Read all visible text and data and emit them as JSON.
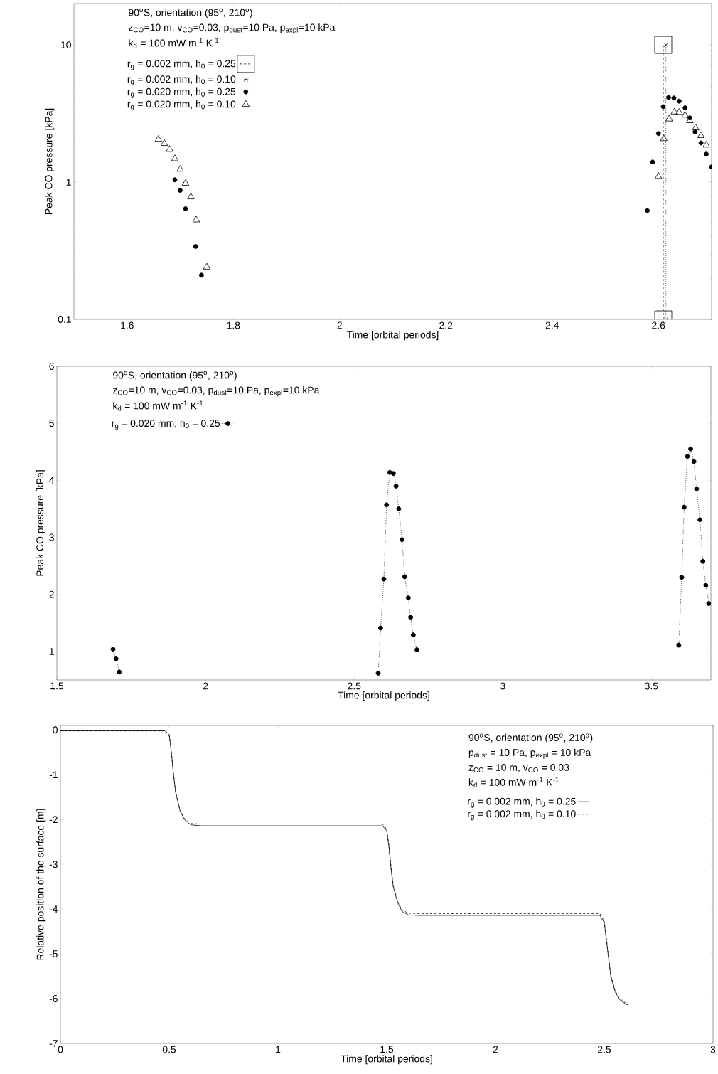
{
  "chart_data": [
    {
      "type": "scatter",
      "xlabel": "Time [orbital periods]",
      "ylabel": "Peak CO pressure [kPa]",
      "log": "y",
      "legend": "top left",
      "xlim": [
        1.5,
        2.7
      ],
      "ylim": [
        0.1,
        20
      ],
      "xticks": [
        1.6,
        1.8,
        2,
        2.2,
        2.4,
        2.6
      ],
      "yticks": [
        0.1,
        1,
        10
      ],
      "annotations": [
        "90$^{o}$S, orientation (95$^{o}$, 210$^{o}$)",
        "z$_{CO}$=10 m, v$_{CO}$=0.03, p$_{dust}$=10 Pa, p$_{expl}$=10 kPa",
        "k$_{d}$ = 100 mW m$^{-1}$ K$^{-1}$"
      ],
      "series": [
        {
          "name": "r$_{g}$ = 0.002 mm, h$_{0}$ = 0.25",
          "type": "line",
          "marker": "square",
          "line_style": "dashed",
          "color": "#000000",
          "x": [
            2.609,
            2.609
          ],
          "values": [
            0.1,
            10
          ]
        },
        {
          "name": "r$_{g}$ = 0.002 mm, h$_{0}$ = 0.10",
          "type": "line",
          "marker": "cross",
          "line_style": "dotted",
          "color": "#000000",
          "x": [
            2.614,
            2.614
          ],
          "values": [
            0.1,
            10
          ]
        },
        {
          "name": "r$_{g}$ = 0.020 mm, h$_{0}$ = 0.25",
          "marker": "circle",
          "color": "#000000",
          "x": [
            1.69,
            1.7,
            1.71,
            1.729,
            1.74,
            2.579,
            2.589,
            2.6,
            2.609,
            2.619,
            2.629,
            2.639,
            2.65,
            2.659,
            2.669,
            2.68,
            2.69,
            2.7
          ],
          "values": [
            1.04,
            0.87,
            0.64,
            0.34,
            0.21,
            0.62,
            1.4,
            2.26,
            3.55,
            4.14,
            4.1,
            3.89,
            3.48,
            2.94,
            2.32,
            1.93,
            1.6,
            1.29
          ]
        },
        {
          "name": "r$_{g}$ = 0.020 mm, h$_{0}$ = 0.10",
          "marker": "triangle",
          "color": "#000000",
          "x": [
            1.659,
            1.67,
            1.68,
            1.69,
            1.7,
            1.71,
            1.72,
            1.73,
            1.75,
            2.6,
            2.61,
            2.62,
            2.63,
            2.639,
            2.65,
            2.659,
            2.67,
            2.68,
            2.69
          ],
          "values": [
            2.05,
            1.91,
            1.73,
            1.48,
            1.24,
            0.98,
            0.78,
            0.53,
            0.24,
            1.1,
            2.07,
            2.88,
            3.24,
            3.22,
            3.07,
            2.8,
            2.48,
            2.18,
            1.86
          ]
        }
      ]
    },
    {
      "type": "line",
      "xlabel": "Time [orbital periods]",
      "ylabel": "Peak CO pressure [kPa]",
      "legend": "top left",
      "marker": "circle",
      "line_style": "dotted",
      "xlim": [
        1.5,
        3.7
      ],
      "ylim": [
        0.5,
        6
      ],
      "xticks": [
        1.5,
        2,
        2.5,
        3,
        3.5
      ],
      "yticks": [
        1,
        2,
        3,
        4,
        5,
        6
      ],
      "annotations": [
        "90$^{o}$S, orientation (95$^{o}$, 210$^{o}$)",
        "z$_{CO}$=10 m, v$_{CO}$=0.03, p$_{dust}$=10 Pa, p$_{expl}$=10 kPa",
        "k$_{d}$ = 100 mW m$^{-1}$ K$^{-1}$"
      ],
      "series": [
        {
          "name": "r$_{g}$ = 0.020 mm, h$_{0}$ = 0.25",
          "color": "#000000",
          "x": [
            1.689,
            1.699,
            1.71,
            2.1,
            2.581,
            2.589,
            2.6,
            2.609,
            2.62,
            2.632,
            2.641,
            2.65,
            2.661,
            2.67,
            2.682,
            2.69,
            2.699,
            2.711,
            3.1,
            3.592,
            3.602,
            3.61,
            3.621,
            3.632,
            3.643,
            3.652,
            3.663,
            3.673,
            3.683,
            3.693
          ],
          "values": [
            1.04,
            0.87,
            0.64,
            null,
            0.62,
            1.41,
            2.27,
            3.57,
            4.14,
            4.12,
            3.9,
            3.5,
            2.96,
            2.31,
            1.94,
            1.6,
            1.29,
            1.03,
            null,
            1.11,
            2.3,
            3.53,
            4.42,
            4.55,
            4.33,
            3.85,
            3.31,
            2.58,
            2.16,
            1.84
          ]
        }
      ]
    },
    {
      "type": "line",
      "xlabel": "Time [orbital periods]",
      "ylabel": "Relative position of the surface [m]",
      "legend": "top right",
      "xlim": [
        0,
        3
      ],
      "ylim": [
        -7,
        0.1
      ],
      "xticks": [
        0,
        0.5,
        1,
        1.5,
        2,
        2.5,
        3
      ],
      "yticks": [
        -7,
        -6,
        -5,
        -4,
        -3,
        -2,
        -1,
        0
      ],
      "annotations": [
        "90$^{o}$S, orientation (95$^{o}$, 210$^{o}$)",
        "p$_{dust}$ = 10 Pa, p$_{expl}$ = 10 kPa",
        "z$_{CO}$ = 10 m, v$_{CO}$ = 0.03",
        "k$_{d}$ = 100 mW m$^{-1}$ K$^{-1}$"
      ],
      "series": [
        {
          "name": "r$_{g}$ = 0.002 mm, h$_{0}$ = 0.25",
          "line_style": "solid",
          "color": "#000000",
          "x": [
            0,
            0.48,
            0.5,
            0.51,
            0.52,
            0.53,
            0.55,
            0.57,
            0.6,
            0.65,
            1.48,
            1.5,
            1.51,
            1.52,
            1.53,
            1.55,
            1.57,
            1.6,
            1.65,
            2.48,
            2.5,
            2.51,
            2.52,
            2.53,
            2.55,
            2.57,
            2.6,
            2.61
          ],
          "values": [
            -0.02,
            -0.02,
            -0.1,
            -0.5,
            -1.0,
            -1.4,
            -1.8,
            -2.0,
            -2.12,
            -2.14,
            -2.14,
            -2.25,
            -2.6,
            -3.1,
            -3.5,
            -3.85,
            -4.05,
            -4.13,
            -4.14,
            -4.14,
            -4.3,
            -4.7,
            -5.1,
            -5.5,
            -5.85,
            -6.02,
            -6.13,
            -6.14
          ]
        },
        {
          "name": "r$_{g}$ = 0.002 mm, h$_{0}$ = 0.10",
          "line_style": "dashed",
          "color": "#000000",
          "x": [
            0,
            0.48,
            0.5,
            0.51,
            0.52,
            0.53,
            0.55,
            0.57,
            0.6,
            0.65,
            1.48,
            1.5,
            1.51,
            1.52,
            1.53,
            1.55,
            1.57,
            1.6,
            1.65,
            2.48,
            2.5,
            2.51,
            2.52,
            2.53,
            2.55,
            2.57,
            2.6,
            2.61
          ],
          "values": [
            -0.02,
            -0.02,
            -0.1,
            -0.5,
            -1.0,
            -1.4,
            -1.8,
            -1.98,
            -2.09,
            -2.1,
            -2.1,
            -2.22,
            -2.57,
            -3.07,
            -3.47,
            -3.82,
            -4.02,
            -4.09,
            -4.1,
            -4.1,
            -4.27,
            -4.67,
            -5.07,
            -5.47,
            -5.82,
            -6.0,
            -6.1,
            -6.12
          ]
        }
      ]
    }
  ]
}
